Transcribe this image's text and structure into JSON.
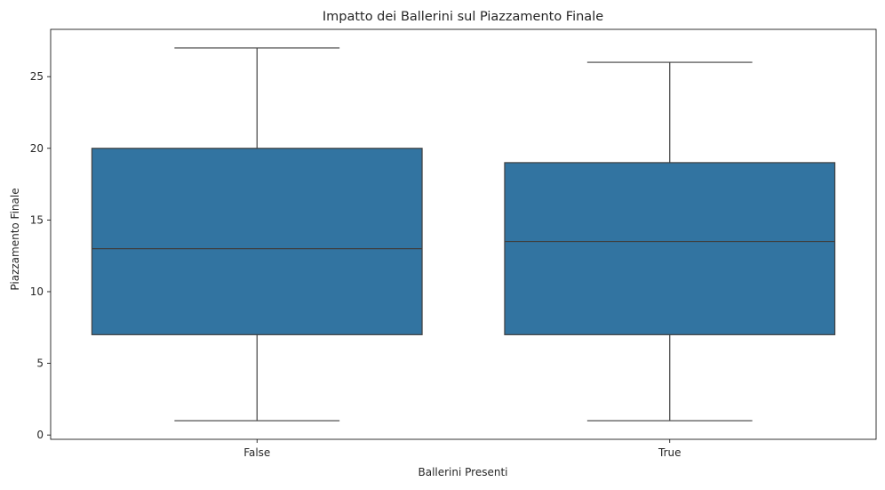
{
  "chart_data": {
    "type": "box",
    "title": "Impatto dei Ballerini sul Piazzamento Finale",
    "xlabel": "Ballerini Presenti",
    "ylabel": "Piazzamento Finale",
    "ylim": [
      -0.3,
      28.3
    ],
    "yticks": [
      0,
      5,
      10,
      15,
      20,
      25
    ],
    "grid": false,
    "categories": [
      "False",
      "True"
    ],
    "boxes": [
      {
        "category": "False",
        "whisker_low": 1,
        "q1": 7,
        "median": 13,
        "q3": 20,
        "whisker_high": 27
      },
      {
        "category": "True",
        "whisker_low": 1,
        "q1": 7,
        "median": 13.5,
        "q3": 19,
        "whisker_high": 26
      }
    ],
    "colors": {
      "box_fill": "#3274a1",
      "line": "#3f3f3f"
    }
  }
}
